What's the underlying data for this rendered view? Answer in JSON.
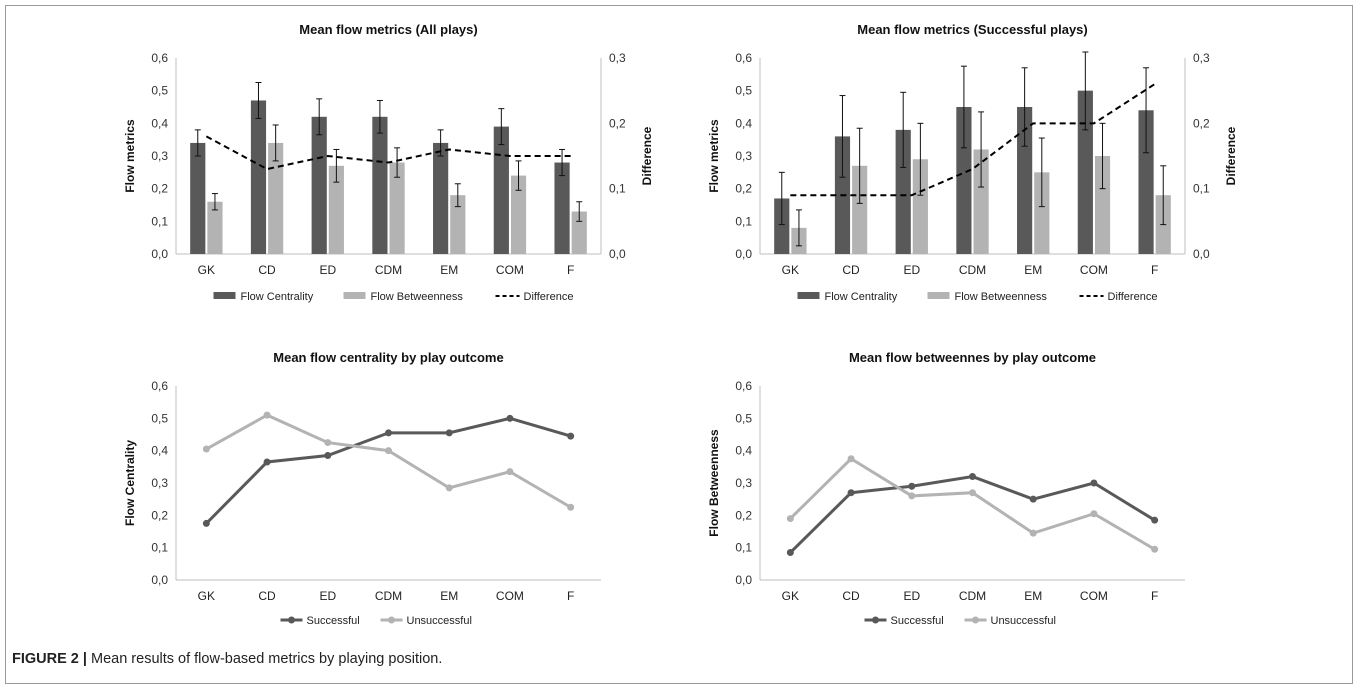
{
  "caption": {
    "label": "FIGURE 2 |",
    "text": " Mean results of flow-based metrics by playing position."
  },
  "colors": {
    "dark_series": "#595959",
    "light_series": "#b3b3b3",
    "difference_line": "#000000",
    "axis": "#bfbfbf"
  },
  "chart_data": [
    {
      "type": "bar",
      "title": "Mean flow metrics (All plays)",
      "categories": [
        "GK",
        "CD",
        "ED",
        "CDM",
        "EM",
        "COM",
        "F"
      ],
      "ylabel": "Flow metrics",
      "ylim": [
        0,
        0.6
      ],
      "yticks": [
        "0,0",
        "0,1",
        "0,2",
        "0,3",
        "0,4",
        "0,5",
        "0,6"
      ],
      "y2label": "Difference",
      "y2lim": [
        0,
        0.3
      ],
      "y2ticks": [
        "0,0",
        "0,1",
        "0,2",
        "0,3"
      ],
      "series": [
        {
          "name": "Flow Centrality",
          "values": [
            0.34,
            0.47,
            0.42,
            0.42,
            0.34,
            0.39,
            0.28
          ],
          "errors": [
            0.04,
            0.055,
            0.055,
            0.05,
            0.04,
            0.055,
            0.04
          ]
        },
        {
          "name": "Flow Betweenness",
          "values": [
            0.16,
            0.34,
            0.27,
            0.28,
            0.18,
            0.24,
            0.13
          ],
          "errors": [
            0.025,
            0.055,
            0.05,
            0.045,
            0.035,
            0.045,
            0.03
          ]
        }
      ],
      "line": {
        "name": "Difference",
        "values": [
          0.18,
          0.13,
          0.15,
          0.14,
          0.16,
          0.15,
          0.15
        ],
        "axis": "secondary",
        "style": "dashed"
      },
      "grid": false,
      "legend": "bottom"
    },
    {
      "type": "bar",
      "title": "Mean flow metrics (Successful plays)",
      "categories": [
        "GK",
        "CD",
        "ED",
        "CDM",
        "EM",
        "COM",
        "F"
      ],
      "ylabel": "Flow metrics",
      "ylim": [
        0,
        0.6
      ],
      "yticks": [
        "0,0",
        "0,1",
        "0,2",
        "0,3",
        "0,4",
        "0,5",
        "0,6"
      ],
      "y2label": "Difference",
      "y2lim": [
        0,
        0.3
      ],
      "y2ticks": [
        "0,0",
        "0,1",
        "0,2",
        "0,3"
      ],
      "series": [
        {
          "name": "Flow Centrality",
          "values": [
            0.17,
            0.36,
            0.38,
            0.45,
            0.45,
            0.5,
            0.44
          ],
          "errors": [
            0.08,
            0.125,
            0.115,
            0.125,
            0.12,
            0.12,
            0.13
          ]
        },
        {
          "name": "Flow Betweenness",
          "values": [
            0.08,
            0.27,
            0.29,
            0.32,
            0.25,
            0.3,
            0.18
          ],
          "errors": [
            0.055,
            0.115,
            0.11,
            0.115,
            0.105,
            0.1,
            0.09
          ]
        }
      ],
      "line": {
        "name": "Difference",
        "values": [
          0.09,
          0.09,
          0.09,
          0.13,
          0.2,
          0.2,
          0.26
        ],
        "axis": "secondary",
        "style": "dashed"
      },
      "grid": false,
      "legend": "bottom"
    },
    {
      "type": "line",
      "title": "Mean flow centrality by play outcome",
      "categories": [
        "GK",
        "CD",
        "ED",
        "CDM",
        "EM",
        "COM",
        "F"
      ],
      "ylabel": "Flow Centrality",
      "ylim": [
        0,
        0.6
      ],
      "yticks": [
        "0,0",
        "0,1",
        "0,2",
        "0,3",
        "0,4",
        "0,5",
        "0,6"
      ],
      "series": [
        {
          "name": "Successful",
          "values": [
            0.175,
            0.365,
            0.385,
            0.455,
            0.455,
            0.5,
            0.445
          ]
        },
        {
          "name": "Unsuccessful",
          "values": [
            0.405,
            0.51,
            0.425,
            0.4,
            0.285,
            0.335,
            0.225
          ]
        }
      ],
      "grid": false,
      "legend": "bottom"
    },
    {
      "type": "line",
      "title": "Mean flow betweennes by play outcome",
      "categories": [
        "GK",
        "CD",
        "ED",
        "CDM",
        "EM",
        "COM",
        "F"
      ],
      "ylabel": "Flow Betweenness",
      "ylim": [
        0,
        0.6
      ],
      "yticks": [
        "0,0",
        "0,1",
        "0,2",
        "0,3",
        "0,4",
        "0,5",
        "0,6"
      ],
      "series": [
        {
          "name": "Successful",
          "values": [
            0.085,
            0.27,
            0.29,
            0.32,
            0.25,
            0.3,
            0.185
          ]
        },
        {
          "name": "Unsuccessful",
          "values": [
            0.19,
            0.375,
            0.26,
            0.27,
            0.145,
            0.205,
            0.095
          ]
        }
      ],
      "grid": false,
      "legend": "bottom"
    }
  ]
}
